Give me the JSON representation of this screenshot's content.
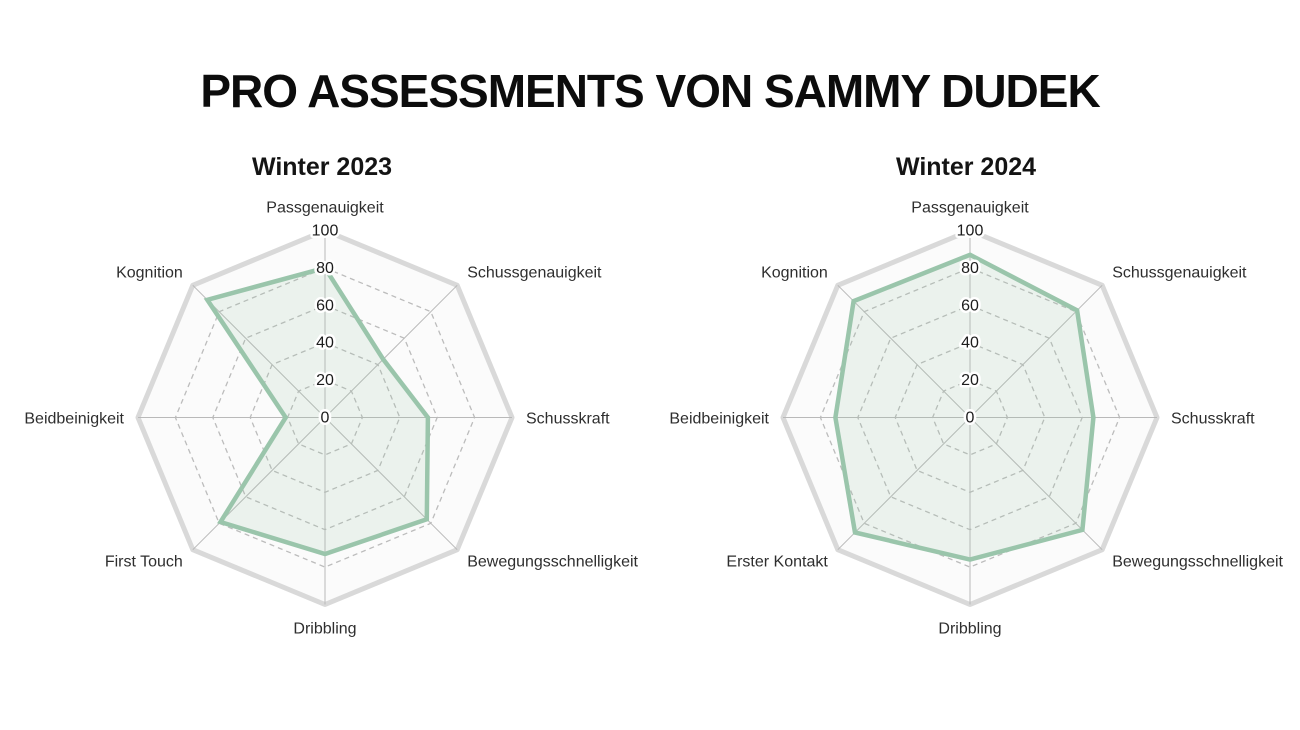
{
  "header": {
    "title": "PRO ASSESSMENTS VON SAMMY DUDEK"
  },
  "colors": {
    "accent_stroke": "#9ac5ab",
    "accent_fill": "#9ac5ab",
    "outline": "#d9d9d9",
    "grid": "#bcbcbc",
    "spoke": "#b9b9b9",
    "inner_bg": "#fbfbfb",
    "axis_text": "#2e2e2e",
    "tick_text": "#1c1c1c",
    "title_text": "#0c0c0c"
  },
  "chart_data": [
    {
      "type": "radar",
      "title": "Winter 2023",
      "categories": [
        "Passgenauigkeit",
        "Schussgenauigkeit",
        "Schusskraft",
        "Bewegungsschnelligkeit",
        "Dribbling",
        "First Touch",
        "Beidbeinigkeit",
        "Kognition"
      ],
      "values": [
        80,
        44,
        55,
        77,
        73,
        79,
        21,
        89
      ],
      "rmin": 0,
      "rmax": 100,
      "ticks": [
        0,
        20,
        40,
        60,
        80,
        100
      ],
      "grid": "dashed-octagon-rings",
      "legend": "none"
    },
    {
      "type": "radar",
      "title": "Winter 2024",
      "categories": [
        "Passgenauigkeit",
        "Schussgenauigkeit",
        "Schusskraft",
        "Bewegungsschnelligkeit",
        "Dribbling",
        "Erster Kontakt",
        "Beidbeinigkeit",
        "Kognition"
      ],
      "values": [
        87,
        81,
        66,
        85,
        76,
        87,
        72,
        88
      ],
      "rmin": 0,
      "rmax": 100,
      "ticks": [
        0,
        20,
        40,
        60,
        80,
        100
      ],
      "grid": "dashed-octagon-rings",
      "legend": "none"
    }
  ]
}
